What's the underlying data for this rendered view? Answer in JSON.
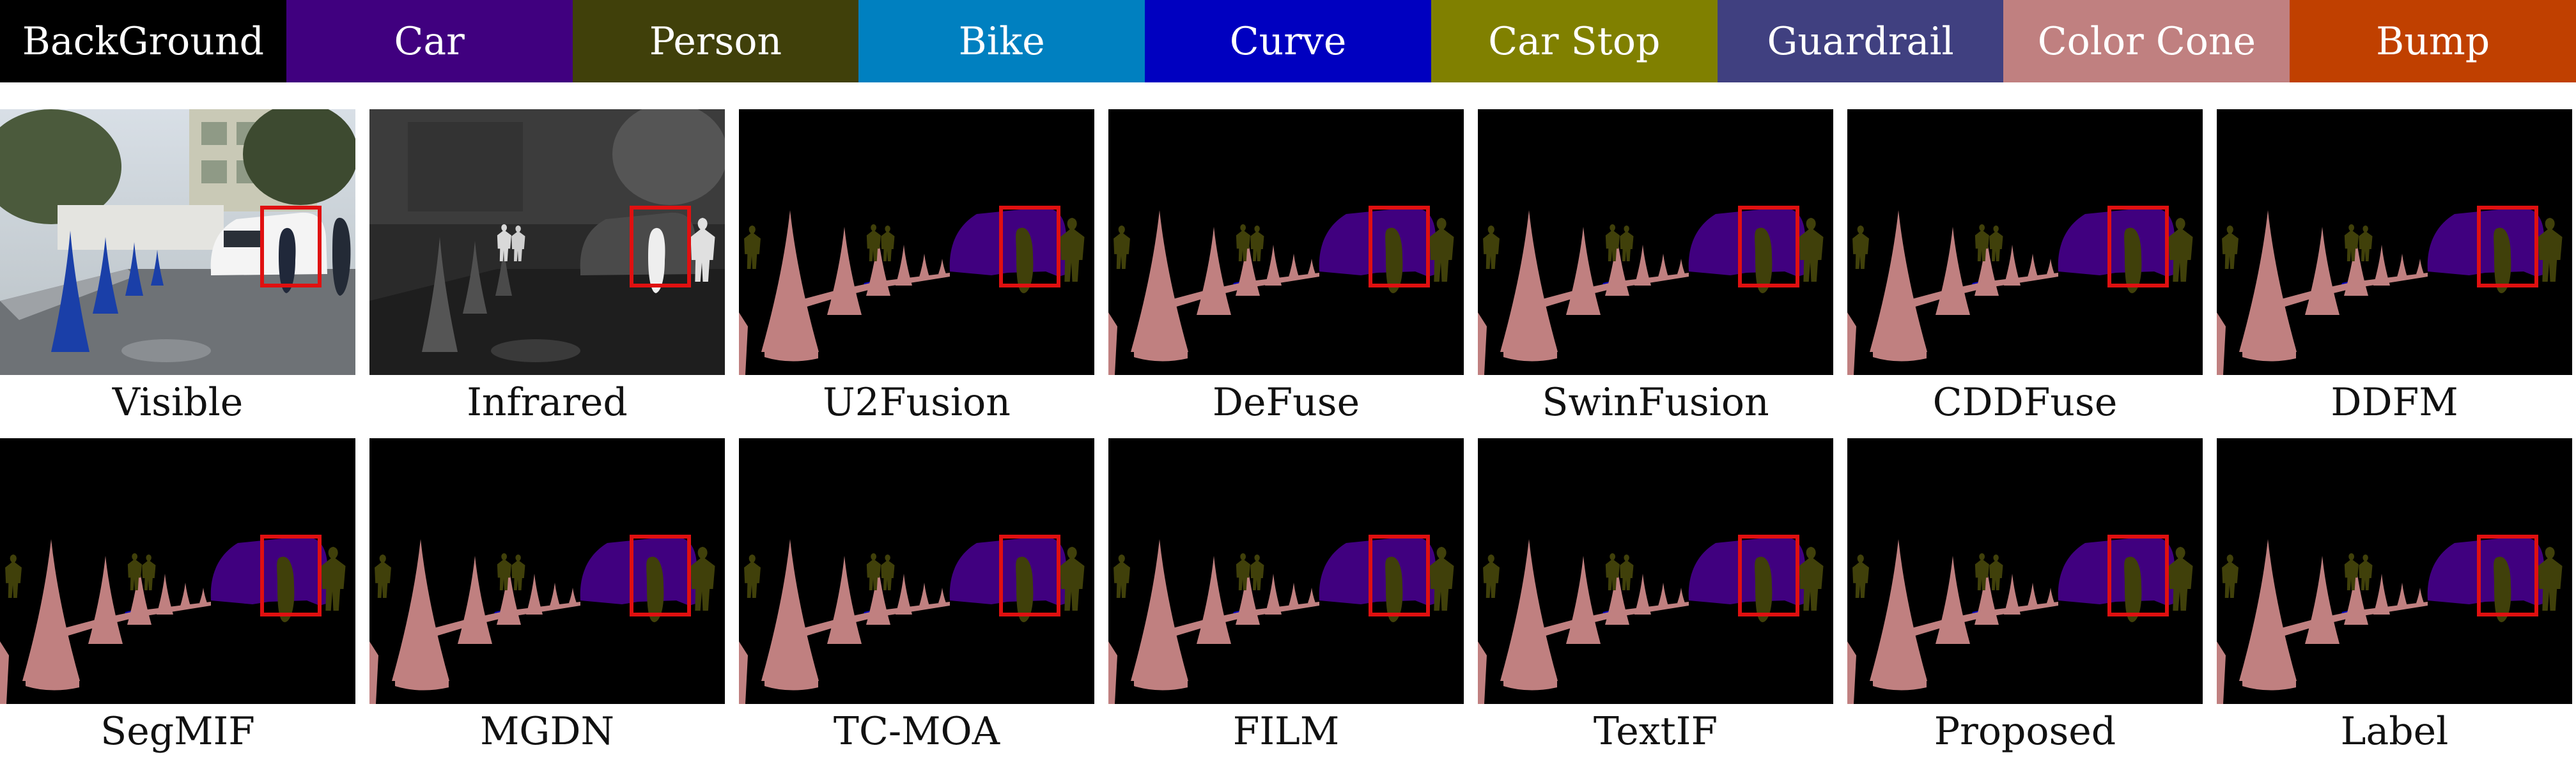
{
  "legend": [
    {
      "label": "BackGround",
      "color": "#000000"
    },
    {
      "label": "Car",
      "color": "#40007f"
    },
    {
      "label": "Person",
      "color": "#40400a"
    },
    {
      "label": "Bike",
      "color": "#0080c0"
    },
    {
      "label": "Curve",
      "color": "#0000c0"
    },
    {
      "label": "Car Stop",
      "color": "#808000"
    },
    {
      "label": "Guardrail",
      "color": "#404080"
    },
    {
      "label": "Color Cone",
      "color": "#c08080"
    },
    {
      "label": "Bump",
      "color": "#c04000"
    }
  ],
  "panels": [
    {
      "caption": "Visible",
      "kind": "visible"
    },
    {
      "caption": "Infrared",
      "kind": "infrared"
    },
    {
      "caption": "U2Fusion",
      "kind": "segmentation"
    },
    {
      "caption": "DeFuse",
      "kind": "segmentation"
    },
    {
      "caption": "SwinFusion",
      "kind": "segmentation"
    },
    {
      "caption": "CDDFuse",
      "kind": "segmentation"
    },
    {
      "caption": "DDFM",
      "kind": "segmentation"
    },
    {
      "caption": "SegMIF",
      "kind": "segmentation"
    },
    {
      "caption": "MGDN",
      "kind": "segmentation"
    },
    {
      "caption": "TC-MOA",
      "kind": "segmentation"
    },
    {
      "caption": "FILM",
      "kind": "segmentation"
    },
    {
      "caption": "TextIF",
      "kind": "segmentation"
    },
    {
      "caption": "Proposed",
      "kind": "segmentation"
    },
    {
      "caption": "Label",
      "kind": "segmentation"
    }
  ],
  "highlight_box_color": "#e01010"
}
